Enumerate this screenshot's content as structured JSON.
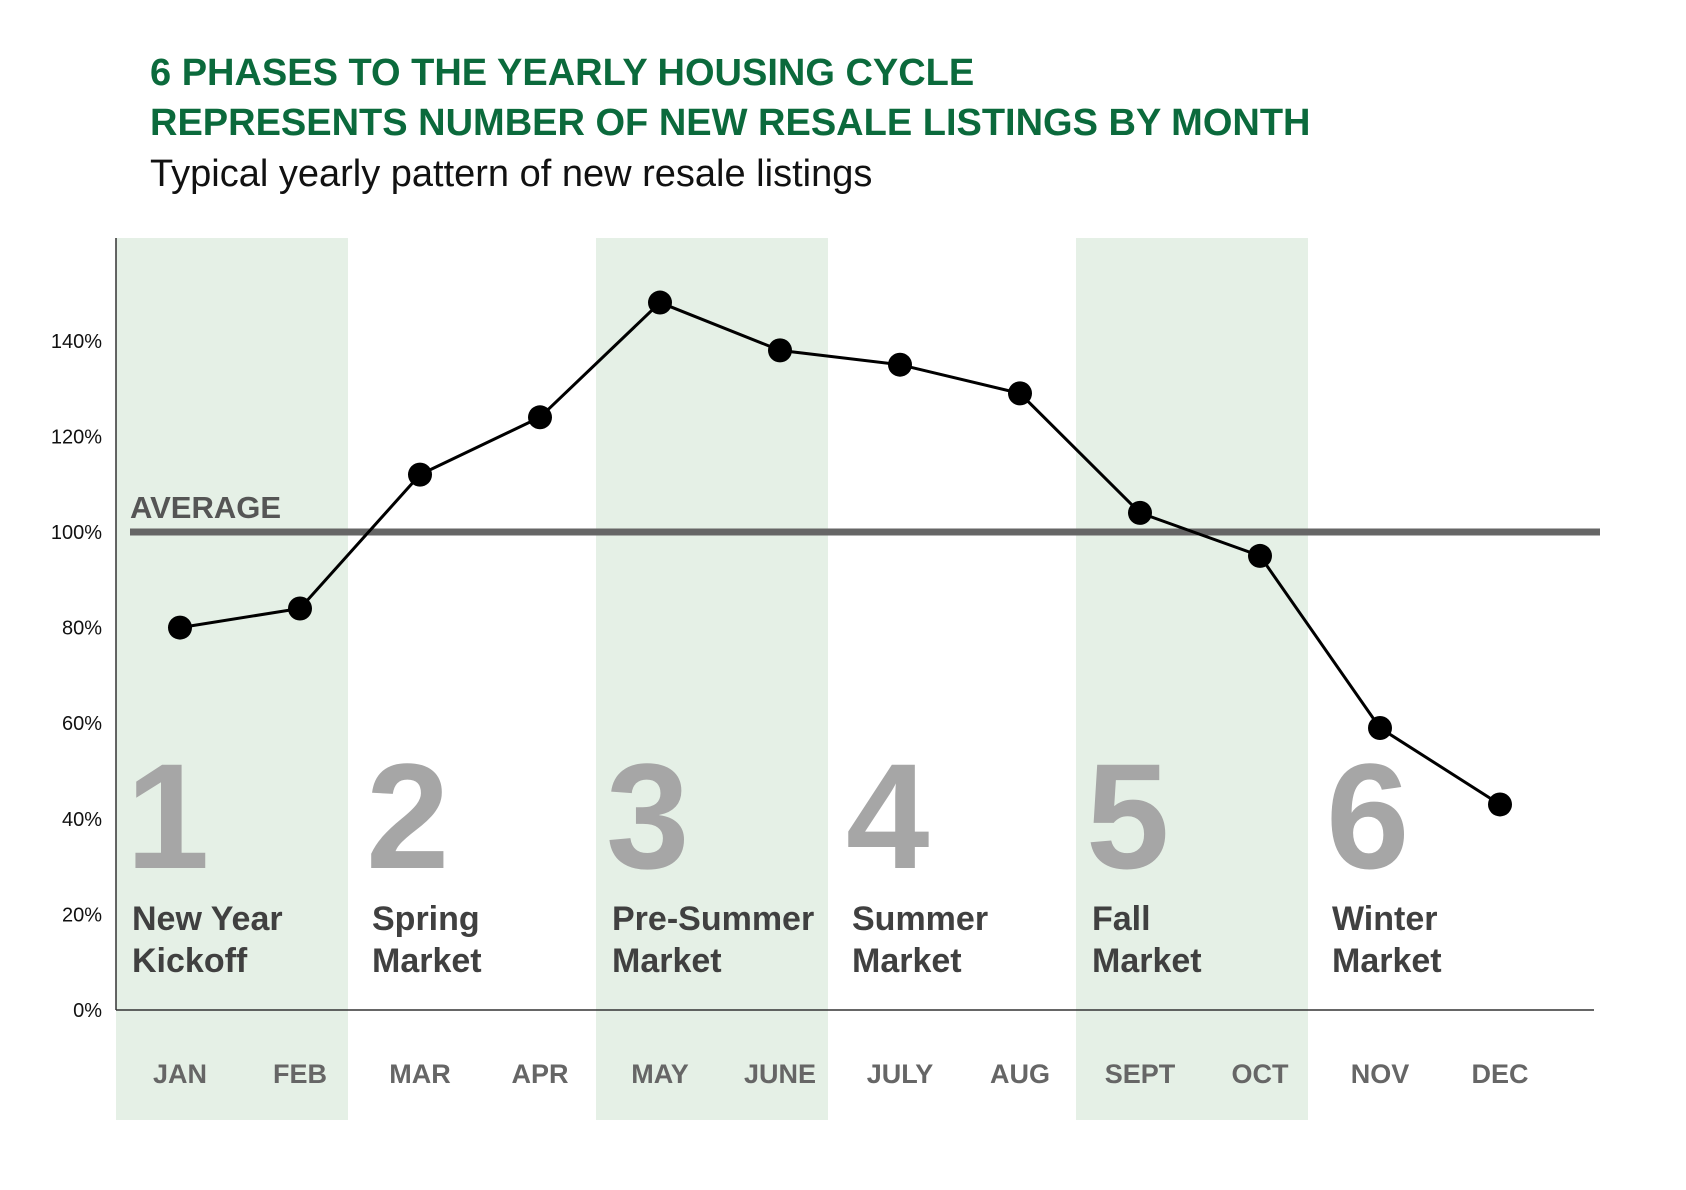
{
  "chart_data": {
    "type": "line",
    "title": "6 PHASES TO THE YEARLY HOUSING CYCLE",
    "title_line2": "REPRESENTS NUMBER OF NEW RESALE LISTINGS BY MONTH",
    "subtitle": "Typical yearly pattern of new resale listings",
    "categories": [
      "JAN",
      "FEB",
      "MAR",
      "APR",
      "MAY",
      "JUNE",
      "JULY",
      "AUG",
      "SEPT",
      "OCT",
      "NOV",
      "DEC"
    ],
    "values": [
      80,
      84,
      112,
      124,
      148,
      138,
      135,
      129,
      104,
      95,
      59,
      43
    ],
    "yticks": [
      "0%",
      "20%",
      "40%",
      "60%",
      "80%",
      "100%",
      "120%",
      "140%"
    ],
    "ylim": [
      0,
      160
    ],
    "reference_line": {
      "label": "AVERAGE",
      "value": 100,
      "color": "#666666"
    },
    "phases": [
      {
        "number": "1",
        "line1": "New Year",
        "line2": "Kickoff",
        "months": [
          0,
          1
        ],
        "shaded": true
      },
      {
        "number": "2",
        "line1": "Spring",
        "line2": "Market",
        "months": [
          2,
          3
        ],
        "shaded": false
      },
      {
        "number": "3",
        "line1": "Pre-Summer",
        "line2": "Market",
        "months": [
          4,
          5
        ],
        "shaded": true
      },
      {
        "number": "4",
        "line1": "Summer",
        "line2": "Market",
        "months": [
          6,
          7
        ],
        "shaded": false
      },
      {
        "number": "5",
        "line1": "Fall",
        "line2": "Market",
        "months": [
          8,
          9
        ],
        "shaded": true
      },
      {
        "number": "6",
        "line1": "Winter",
        "line2": "Market",
        "months": [
          10,
          11
        ],
        "shaded": false
      }
    ],
    "colors": {
      "title": "#0b6a3c",
      "band": "#e5f0e6",
      "line": "#000000"
    }
  }
}
